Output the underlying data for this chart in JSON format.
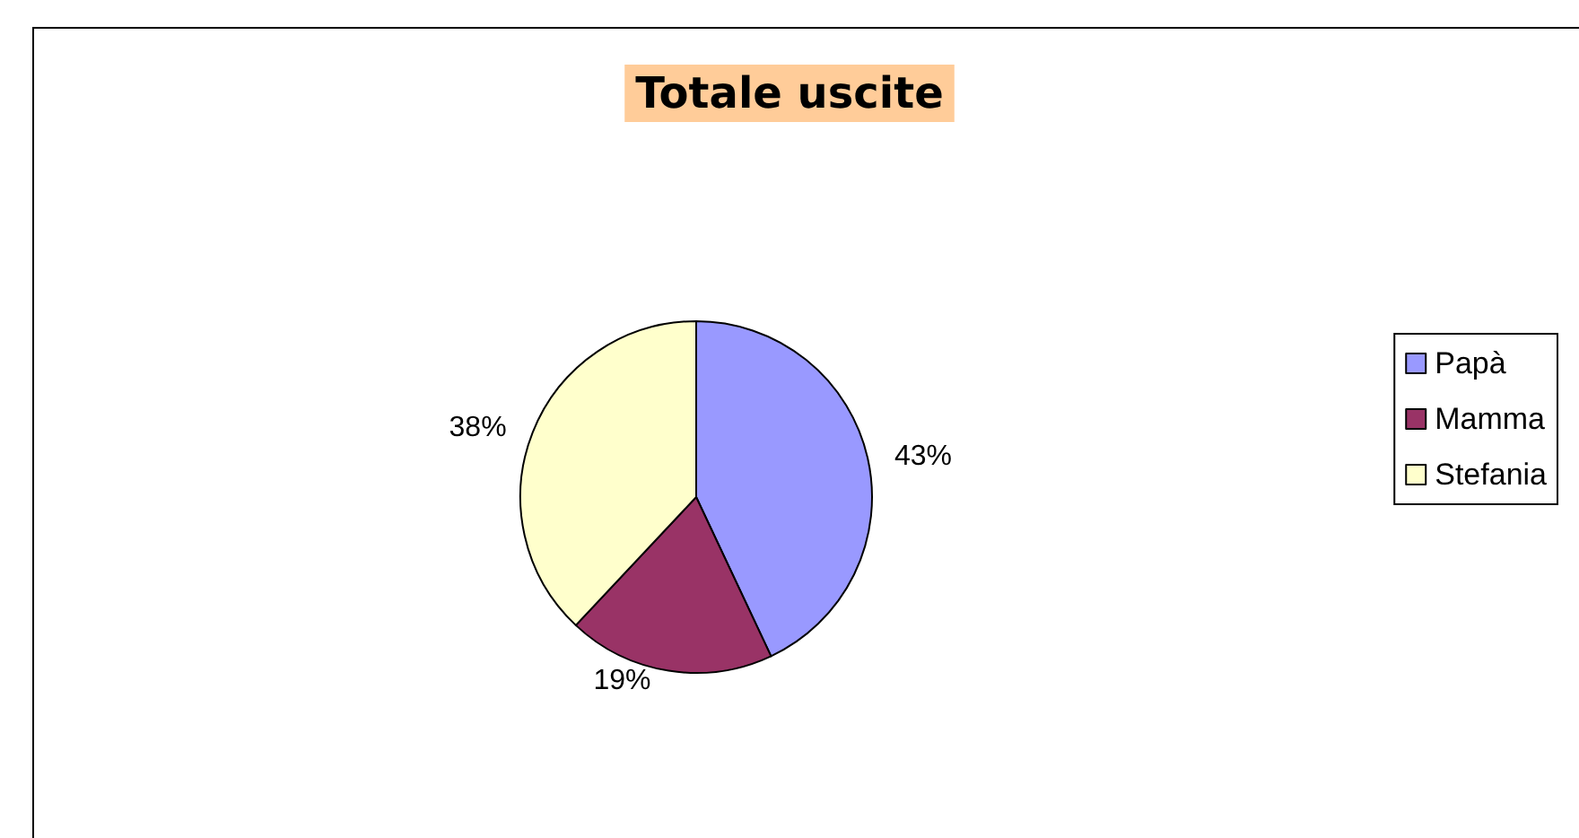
{
  "chart_data": {
    "type": "pie",
    "title": "Totale uscite",
    "categories": [
      "Papà",
      "Mamma",
      "Stefania"
    ],
    "values": [
      43,
      19,
      38
    ],
    "colors": [
      "#9999ff",
      "#993366",
      "#ffffcc"
    ],
    "value_labels": [
      "43%",
      "19%",
      "38%"
    ],
    "legend": "right"
  }
}
